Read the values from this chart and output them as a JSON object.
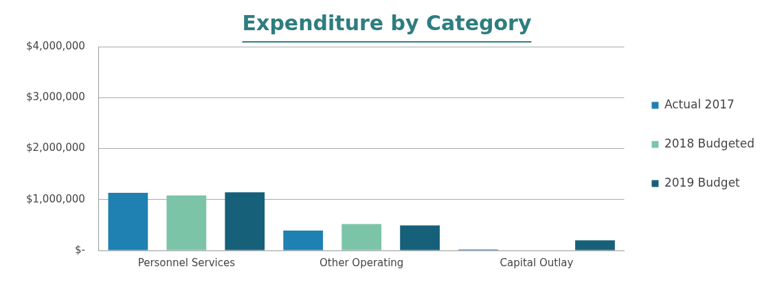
{
  "chart_data": {
    "type": "bar",
    "title": "Expenditure by Category",
    "categories": [
      "Personnel Services",
      "Other Operating",
      "Capital Outlay"
    ],
    "series": [
      {
        "name": "Actual 2017",
        "color": "#1f80b2",
        "values": [
          1130000,
          390000,
          20000
        ]
      },
      {
        "name": "2018 Budgeted",
        "color": "#7cc4a8",
        "values": [
          1080000,
          520000,
          0
        ]
      },
      {
        "name": "2019 Budget",
        "color": "#17607a",
        "values": [
          1140000,
          490000,
          200000
        ]
      }
    ],
    "ylim": [
      0,
      4000000
    ],
    "yticks": [
      {
        "value": 0,
        "label": "$-"
      },
      {
        "value": 1000000,
        "label": "$1,000,000"
      },
      {
        "value": 2000000,
        "label": "$2,000,000"
      },
      {
        "value": 3000000,
        "label": "$3,000,000"
      },
      {
        "value": 4000000,
        "label": "$4,000,000"
      }
    ],
    "grid": "y",
    "legend": "right"
  }
}
